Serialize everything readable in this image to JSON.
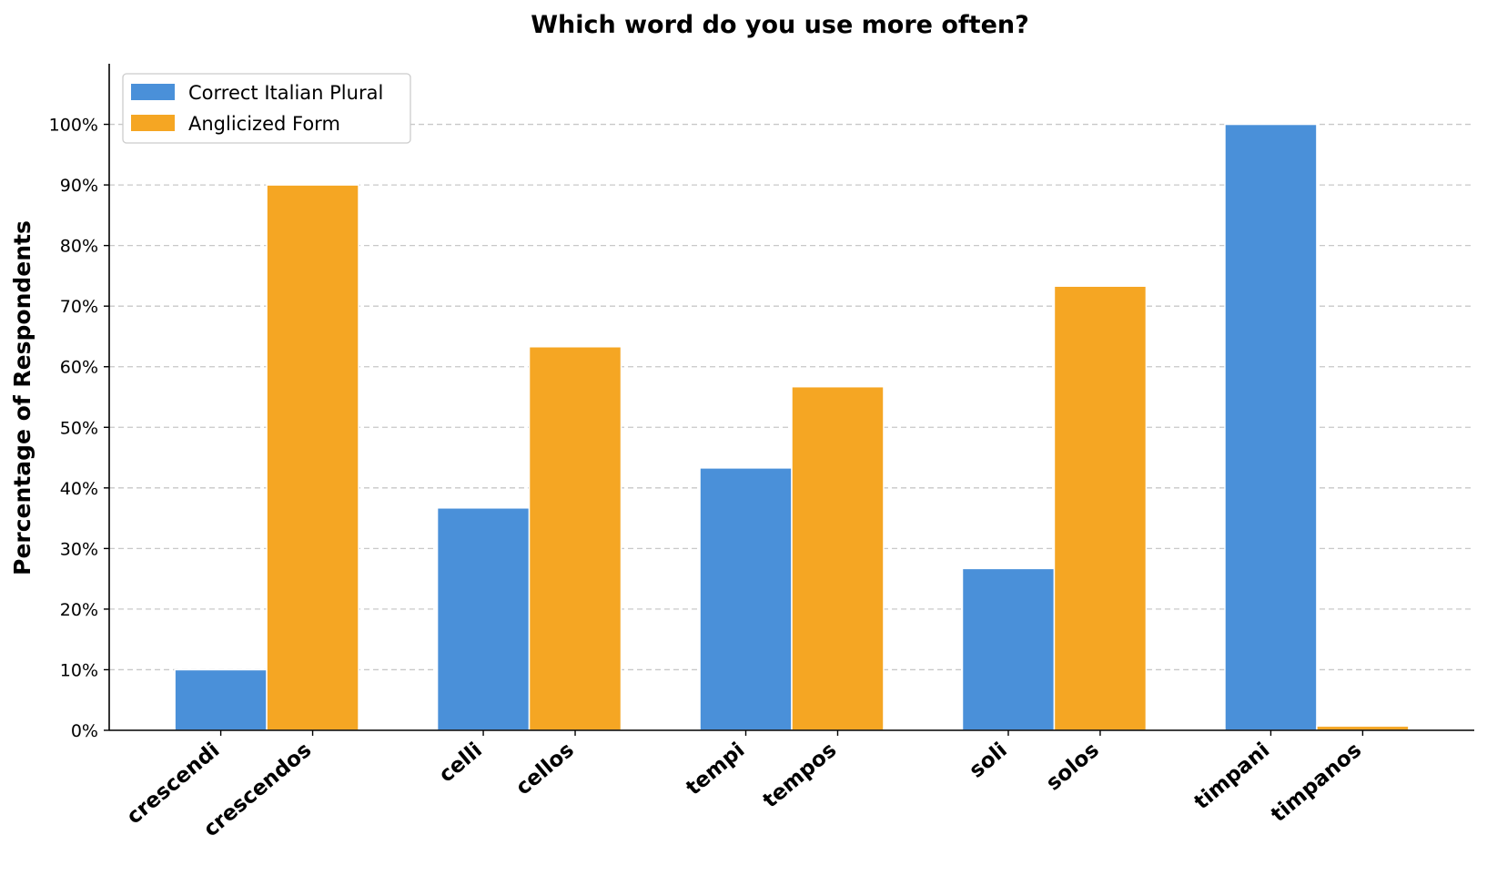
{
  "chart_data": {
    "type": "bar",
    "title": "Which word do you use more often?",
    "xlabel": "",
    "ylabel": "Percentage of Respondents",
    "ylim": [
      0,
      110
    ],
    "yticks": [
      0,
      10,
      20,
      30,
      40,
      50,
      60,
      70,
      80,
      90,
      100
    ],
    "ytick_labels": [
      "0%",
      "10%",
      "20%",
      "30%",
      "40%",
      "50%",
      "60%",
      "70%",
      "80%",
      "90%",
      "100%"
    ],
    "grid": true,
    "legend_position": "top-left",
    "groups": [
      {
        "italian": "crescendi",
        "anglicized": "crescendos"
      },
      {
        "italian": "celli",
        "anglicized": "cellos"
      },
      {
        "italian": "tempi",
        "anglicized": "tempos"
      },
      {
        "italian": "soli",
        "anglicized": "solos"
      },
      {
        "italian": "timpani",
        "anglicized": "timpanos"
      }
    ],
    "series": [
      {
        "name": "Correct Italian Plural",
        "color": "#4a90d9",
        "values": [
          10.0,
          36.7,
          43.3,
          26.7,
          100.0
        ]
      },
      {
        "name": "Anglicized Form",
        "color": "#f5a623",
        "values": [
          90.0,
          63.3,
          56.7,
          73.3,
          0.7
        ]
      }
    ]
  }
}
